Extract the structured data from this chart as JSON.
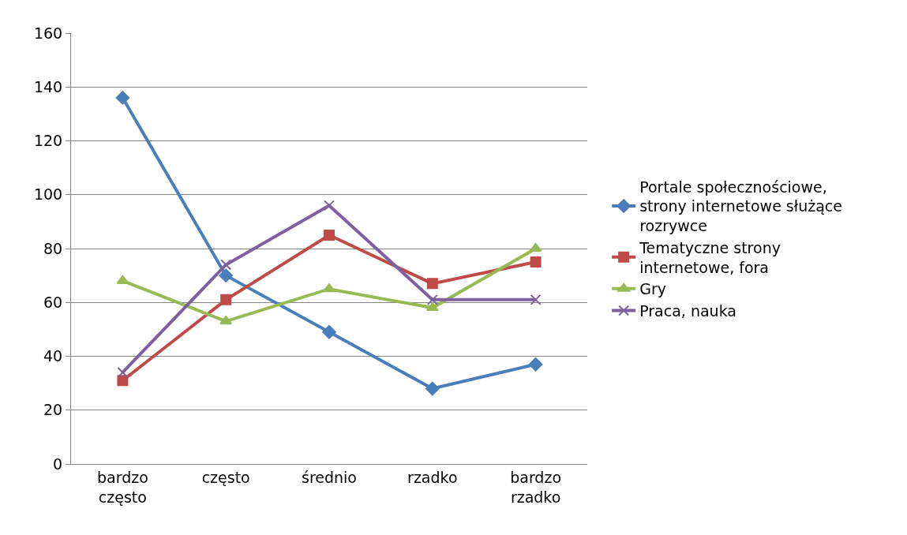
{
  "chart_data": {
    "type": "line",
    "categories": [
      "bardzo często",
      "często",
      "średnio",
      "rzadko",
      "bardzo rzadko"
    ],
    "series": [
      {
        "name": "Portale społecznościowe, strony internetowe służące rozrywce",
        "color": "#4a7ebb",
        "marker": "diamond",
        "values": [
          136,
          70,
          49,
          28,
          37
        ]
      },
      {
        "name": "Tematyczne strony internetowe, fora",
        "color": "#be4b48",
        "marker": "square",
        "values": [
          31,
          61,
          85,
          67,
          75
        ]
      },
      {
        "name": "Gry",
        "color": "#98b954",
        "marker": "triangle",
        "values": [
          68,
          53,
          65,
          58,
          80
        ]
      },
      {
        "name": "Praca, nauka",
        "color": "#7d60a0",
        "marker": "cross",
        "values": [
          34,
          74,
          96,
          61,
          61
        ]
      }
    ],
    "ylim": [
      0,
      160
    ],
    "yticks": [
      0,
      20,
      40,
      60,
      80,
      100,
      120,
      140,
      160
    ],
    "grid": "y",
    "legend": "right",
    "line_style": "solid"
  }
}
